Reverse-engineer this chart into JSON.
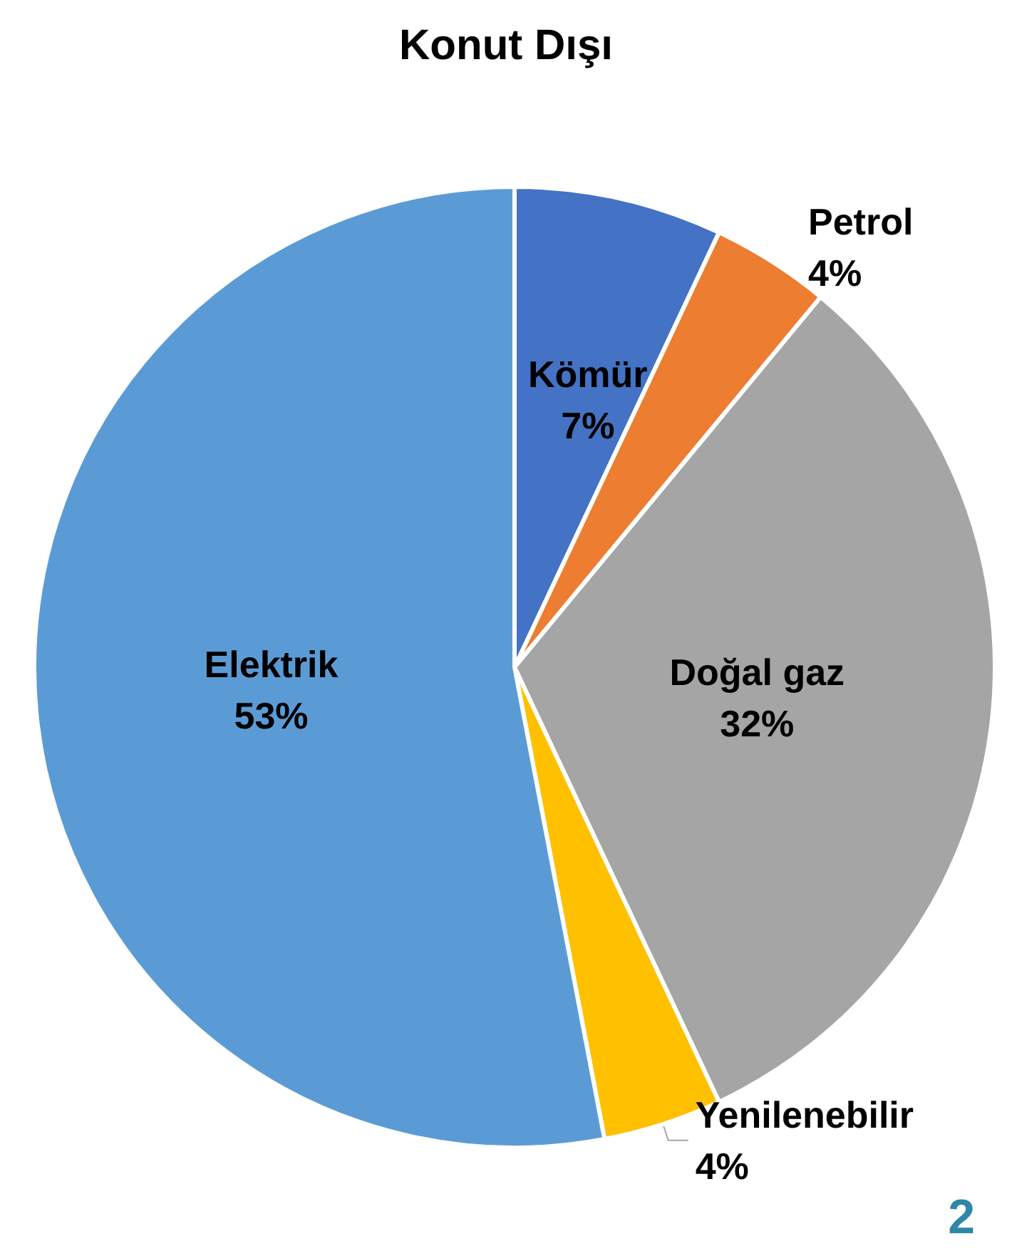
{
  "chart_data": {
    "type": "pie",
    "title": "Konut Dışı",
    "categories": [
      "Kömür",
      "Petrol",
      "Doğal gaz",
      "Yenilenebilir",
      "Elektrik"
    ],
    "values": [
      7,
      4,
      32,
      4,
      53
    ],
    "colors": [
      "#4472c4",
      "#ed7d31",
      "#a5a5a5",
      "#ffc000",
      "#5b9bd5"
    ],
    "value_labels": [
      "7%",
      "4%",
      "32%",
      "4%",
      "53%"
    ],
    "annotations": [
      "2"
    ]
  }
}
